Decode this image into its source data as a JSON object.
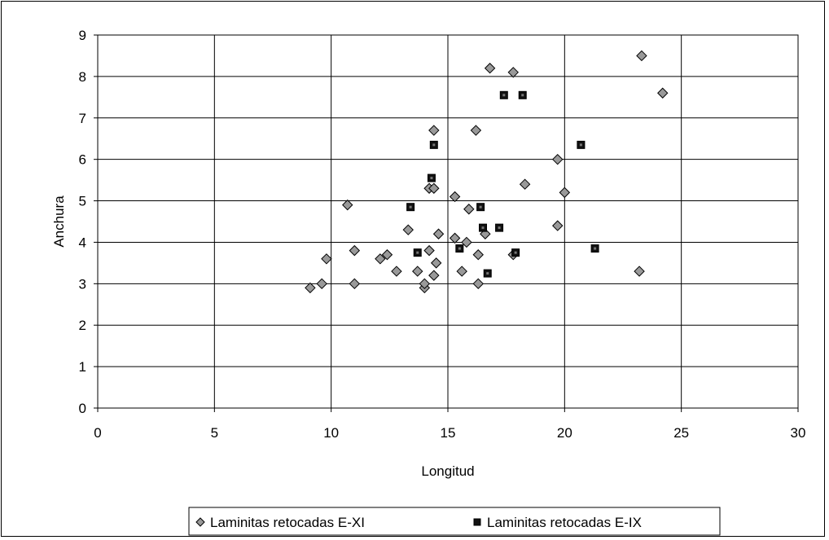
{
  "chart_data": {
    "type": "scatter",
    "xlabel": "Longitud",
    "ylabel": "Anchura",
    "xlim": [
      0,
      30
    ],
    "ylim": [
      0,
      9
    ],
    "xticks": [
      "0",
      "5",
      "10",
      "15",
      "20",
      "25",
      "30"
    ],
    "yticks": [
      "0",
      "1",
      "2",
      "3",
      "4",
      "5",
      "6",
      "7",
      "8",
      "9"
    ],
    "grid": true,
    "legend_position": "bottom",
    "series": [
      {
        "name": "Laminitas retocadas E-XI",
        "marker": "diamond",
        "color": "#999999",
        "points": [
          [
            9.1,
            2.9
          ],
          [
            9.6,
            3.0
          ],
          [
            9.8,
            3.6
          ],
          [
            10.7,
            4.9
          ],
          [
            11.0,
            3.8
          ],
          [
            11.0,
            3.0
          ],
          [
            12.1,
            3.6
          ],
          [
            12.4,
            3.7
          ],
          [
            12.8,
            3.3
          ],
          [
            13.3,
            4.3
          ],
          [
            13.7,
            3.3
          ],
          [
            14.0,
            2.9
          ],
          [
            14.0,
            3.0
          ],
          [
            14.2,
            3.8
          ],
          [
            14.2,
            5.3
          ],
          [
            14.4,
            5.3
          ],
          [
            14.4,
            6.7
          ],
          [
            14.4,
            3.2
          ],
          [
            14.5,
            3.5
          ],
          [
            14.6,
            4.2
          ],
          [
            15.3,
            5.1
          ],
          [
            15.3,
            4.1
          ],
          [
            15.6,
            3.3
          ],
          [
            15.8,
            4.0
          ],
          [
            15.9,
            4.8
          ],
          [
            16.2,
            6.7
          ],
          [
            16.3,
            3.7
          ],
          [
            16.3,
            3.0
          ],
          [
            16.6,
            4.2
          ],
          [
            16.8,
            8.2
          ],
          [
            17.8,
            8.1
          ],
          [
            17.8,
            3.7
          ],
          [
            18.3,
            5.4
          ],
          [
            19.7,
            6.0
          ],
          [
            19.7,
            4.4
          ],
          [
            20.0,
            5.2
          ],
          [
            23.2,
            3.3
          ],
          [
            23.3,
            8.5
          ],
          [
            24.2,
            7.6
          ]
        ]
      },
      {
        "name": "Laminitas retocadas E-IX",
        "marker": "square",
        "color": "#111111",
        "points": [
          [
            13.4,
            4.85
          ],
          [
            13.7,
            3.75
          ],
          [
            14.3,
            5.55
          ],
          [
            14.4,
            6.35
          ],
          [
            15.5,
            3.85
          ],
          [
            16.4,
            4.85
          ],
          [
            16.5,
            4.35
          ],
          [
            16.7,
            3.25
          ],
          [
            17.2,
            4.35
          ],
          [
            17.4,
            7.55
          ],
          [
            17.9,
            3.75
          ],
          [
            18.2,
            7.55
          ],
          [
            20.7,
            6.35
          ],
          [
            21.3,
            3.85
          ]
        ]
      }
    ]
  }
}
